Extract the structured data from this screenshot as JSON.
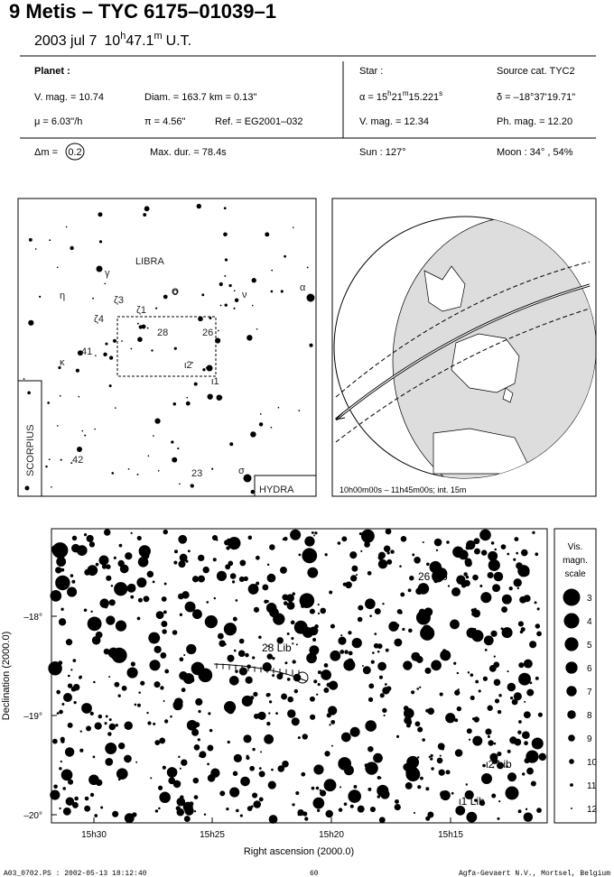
{
  "header": {
    "title": "9 Metis  –  TYC 6175–01039–1",
    "date": "2003 jul  7",
    "hours": "10",
    "h": "h",
    "minutes": "47.1",
    "m": "m",
    "ut": "U.T."
  },
  "planet": {
    "heading": "Planet :",
    "vmag": "V. mag. = 10.74",
    "diam": "Diam. = 163.7 km = 0.13\"",
    "mu": "μ =  6.03\"/h",
    "parallax": "π =  4.56\"",
    "ref": "Ref. = EG2001–032"
  },
  "star": {
    "heading": "Star :",
    "source": "Source cat.  TYC2",
    "ra": [
      "α = 15",
      "h",
      "21",
      "m",
      "15.221",
      "s"
    ],
    "dec": "δ = –18°37'19.71\"",
    "vmag": "V. mag. = 12.34",
    "phmag": "Ph. mag. = 12.20"
  },
  "summary": {
    "dm_label": "Δm =",
    "dm_value": "0.2",
    "maxdur": "Max. dur. = 78.4s",
    "sun": "Sun : 127°",
    "moon": "Moon :  34° , 54%"
  },
  "overview": {
    "labels": [
      "LIBRA",
      "γ",
      "η",
      "ζ3",
      "ζ1",
      "ο",
      "ν",
      "α",
      "ζ4",
      "28",
      "26",
      "41",
      "κ",
      "ι2",
      "ι1",
      "42",
      "23",
      "σ"
    ],
    "scorpius": "SCORPIUS",
    "hydra": "HYDRA"
  },
  "globe": {
    "caption": "10h00m00s – 11h45m00s; int. 15m"
  },
  "finder": {
    "labels": [
      "26 Lib",
      "28 Lib",
      "ι2 Lib",
      "ι1 Lib"
    ],
    "yticks": [
      "–18°",
      "–19°",
      "–20°"
    ],
    "ylabel": "Declination (2000.0)",
    "xticks": [
      "15h30",
      "15h25",
      "15h20",
      "15h15"
    ],
    "xlabel": "Right ascension (2000.0)"
  },
  "scale": {
    "title": [
      "Vis.",
      "magn.",
      "scale"
    ],
    "magnitudes": [
      3,
      4,
      5,
      6,
      7,
      8,
      9,
      10,
      11,
      12
    ]
  },
  "footer": {
    "file": "A03_0702.PS : 2002-05-13 18:12:40",
    "page": "60",
    "company": "Agfa-Gevaert N.V., Mortsel, Belgium"
  }
}
